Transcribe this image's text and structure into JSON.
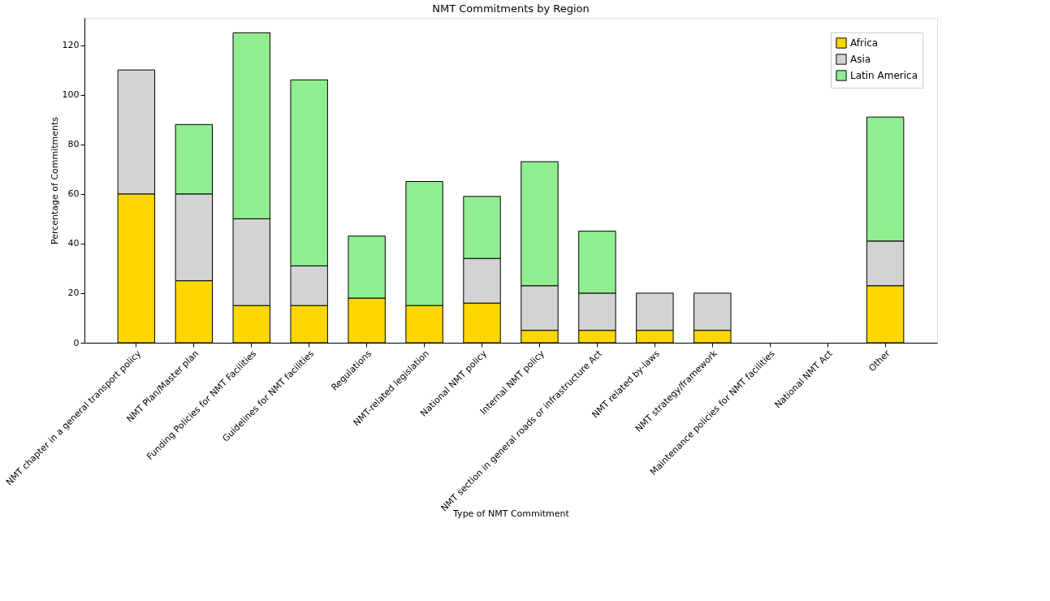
{
  "chart_data": {
    "type": "bar",
    "stacked": true,
    "title": "NMT Commitments by Region",
    "xlabel": "Type of NMT Commitment",
    "ylabel": "Percentage of Commitments",
    "categories": [
      "NMT chapter in a general transport policy",
      "NMT Plan/Master plan",
      "Funding Policies for NMT Facilities",
      "Guidelines for NMT facilities",
      "Regulations",
      "NMT-related legislation",
      "National NMT policy",
      "Internal NMT policy",
      "NMT section in general roads or infrastructure Act",
      "NMT related by-laws",
      "NMT strategy/framework",
      "Maintenance policies for NMT facilities",
      "National NMT Act",
      "Other"
    ],
    "series": [
      {
        "name": "Africa",
        "color": "#ffd700",
        "values": [
          60,
          25,
          15,
          15,
          18,
          15,
          16,
          5,
          5,
          5,
          5,
          0,
          0,
          23
        ]
      },
      {
        "name": "Asia",
        "color": "#d3d3d3",
        "values": [
          50,
          35,
          35,
          16,
          0,
          0,
          18,
          18,
          15,
          15,
          15,
          0,
          0,
          18
        ]
      },
      {
        "name": "Latin America",
        "color": "#90ee90",
        "values": [
          0,
          28,
          75,
          75,
          25,
          50,
          25,
          50,
          25,
          0,
          0,
          0,
          0,
          50
        ]
      }
    ],
    "ylim": [
      0,
      131
    ],
    "yticks": [
      0,
      20,
      40,
      60,
      80,
      100,
      120
    ],
    "grid": false,
    "legend": "top right"
  }
}
